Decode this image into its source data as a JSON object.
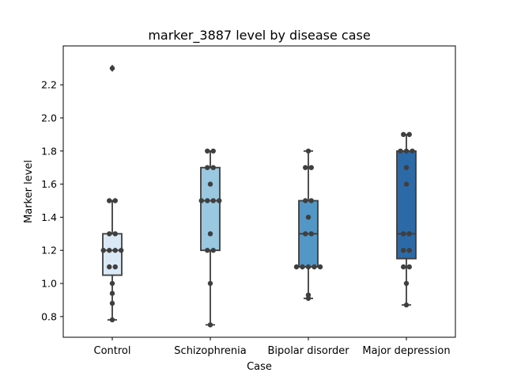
{
  "chart_data": {
    "type": "box",
    "title": "marker_3887 level by disease case",
    "xlabel": "Case",
    "ylabel": "Marker level",
    "ylim": [
      0.675,
      2.435
    ],
    "yticks": [
      "0.8",
      "1.0",
      "1.2",
      "1.4",
      "1.6",
      "1.8",
      "2.0",
      "2.2"
    ],
    "grid": false,
    "legend": "none",
    "categories": [
      "Control",
      "Schizophrenia",
      "Bipolar disorder",
      "Major depression"
    ],
    "box_colors": [
      "#dbe9f6",
      "#9ac8e0",
      "#5297c6",
      "#2b6aa6"
    ],
    "box_stats": [
      {
        "min": 0.78,
        "q1": 1.05,
        "median": 1.2,
        "q3": 1.3,
        "max": 1.5,
        "outliers": [
          2.3
        ]
      },
      {
        "min": 0.75,
        "q1": 1.2,
        "median": 1.5,
        "q3": 1.7,
        "max": 1.8,
        "outliers": []
      },
      {
        "min": 0.91,
        "q1": 1.1,
        "median": 1.3,
        "q3": 1.5,
        "max": 1.8,
        "outliers": []
      },
      {
        "min": 0.87,
        "q1": 1.15,
        "median": 1.3,
        "q3": 1.8,
        "max": 1.9,
        "outliers": []
      }
    ],
    "points": [
      [
        2.3,
        1.5,
        1.5,
        1.3,
        1.3,
        1.2,
        1.2,
        1.2,
        1.2,
        1.1,
        1.1,
        1.0,
        0.94,
        0.88,
        0.78
      ],
      [
        1.8,
        1.8,
        1.7,
        1.7,
        1.6,
        1.5,
        1.5,
        1.5,
        1.5,
        1.3,
        1.2,
        1.2,
        1.0,
        0.75
      ],
      [
        1.8,
        1.7,
        1.7,
        1.5,
        1.5,
        1.4,
        1.3,
        1.3,
        1.1,
        1.1,
        1.1,
        1.1,
        1.1,
        0.93,
        0.91
      ],
      [
        1.9,
        1.9,
        1.8,
        1.8,
        1.8,
        1.7,
        1.6,
        1.3,
        1.3,
        1.2,
        1.2,
        1.1,
        1.1,
        1.0,
        0.87
      ]
    ]
  }
}
